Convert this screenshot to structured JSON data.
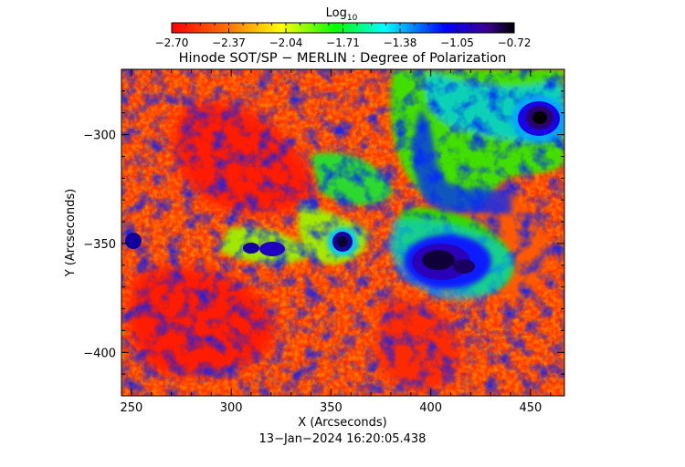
{
  "colorbar": {
    "label": "Log",
    "label_sub": "10",
    "ticks": [
      "−2.70",
      "−2.37",
      "−2.04",
      "−1.71",
      "−1.38",
      "−1.05",
      "−0.72"
    ],
    "range": [
      -2.7,
      -0.72
    ],
    "palette": [
      "#ff0000",
      "#ff7800",
      "#ffff00",
      "#00ff00",
      "#00ffff",
      "#0000ff",
      "#000000"
    ]
  },
  "chart_data": {
    "type": "heatmap",
    "title": "Hinode SOT/SP − MERLIN : Degree of Polarization",
    "xlabel": "X (Arcseconds)",
    "ylabel": "Y (Arcseconds)",
    "xlim": [
      245,
      467
    ],
    "ylim": [
      -420,
      -270
    ],
    "xticks": [
      250,
      300,
      350,
      400,
      450
    ],
    "yticks": [
      -300,
      -350,
      -400
    ],
    "ytick_labels": [
      "−300",
      "−350",
      "−400"
    ],
    "colorscale": "Log10 degree of polarization, red (low) to black (high)",
    "features": [
      {
        "type": "sunspot",
        "x": 450,
        "y": -287
      },
      {
        "type": "pore cluster",
        "x": 405,
        "y": -352
      },
      {
        "type": "pore",
        "x": 355,
        "y": -345
      },
      {
        "type": "pore",
        "x": 320,
        "y": -347
      },
      {
        "type": "pore",
        "x": 250,
        "y": -343
      }
    ]
  },
  "footer": {
    "timestamp": "13−Jan−2024 16:20:05.438"
  }
}
